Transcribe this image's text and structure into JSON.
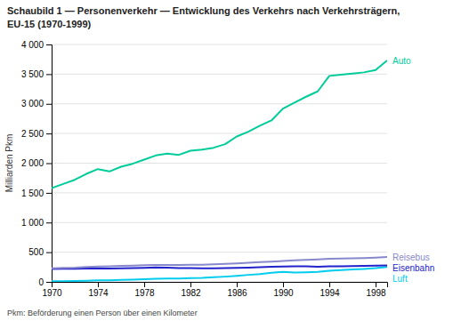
{
  "chart_data": {
    "type": "line",
    "title": "Schaubild 1 — Personenverkehr — Entwicklung des Verkehrs nach Verkehrsträgern,",
    "subtitle": "EU-15 (1970-1999)",
    "y_label": "Milliarden Pkm",
    "footnote": "Pkm: Beförderung einen Person über einen Kilometer",
    "x": [
      1970,
      1971,
      1972,
      1973,
      1974,
      1975,
      1976,
      1977,
      1978,
      1979,
      1980,
      1981,
      1982,
      1983,
      1984,
      1985,
      1986,
      1987,
      1988,
      1989,
      1990,
      1991,
      1992,
      1993,
      1994,
      1995,
      1996,
      1997,
      1998,
      1999
    ],
    "series": [
      {
        "name": "Auto",
        "color": "#00CC99",
        "values": [
          1580,
          1650,
          1720,
          1820,
          1900,
          1860,
          1940,
          1990,
          2060,
          2130,
          2160,
          2140,
          2210,
          2230,
          2260,
          2320,
          2450,
          2530,
          2630,
          2720,
          2920,
          3020,
          3120,
          3210,
          3470,
          3490,
          3510,
          3530,
          3570,
          3730
        ]
      },
      {
        "name": "Reisebus",
        "color": "#8888CC",
        "values": [
          230,
          235,
          240,
          252,
          258,
          262,
          268,
          272,
          280,
          285,
          285,
          285,
          287,
          290,
          296,
          302,
          312,
          322,
          332,
          342,
          352,
          362,
          372,
          378,
          388,
          392,
          397,
          402,
          408,
          418
        ]
      },
      {
        "name": "Eisenbahn",
        "color": "#2222CC",
        "values": [
          218,
          220,
          222,
          226,
          230,
          226,
          230,
          232,
          236,
          242,
          239,
          233,
          231,
          229,
          229,
          231,
          236,
          241,
          249,
          253,
          259,
          263,
          261,
          256,
          261,
          263,
          266,
          269,
          273,
          278
        ]
      },
      {
        "name": "Luft",
        "color": "#00CCEE",
        "values": [
          10,
          12,
          15,
          20,
          25,
          28,
          32,
          38,
          45,
          52,
          56,
          55,
          62,
          67,
          78,
          88,
          102,
          118,
          132,
          152,
          168,
          158,
          162,
          168,
          188,
          198,
          208,
          218,
          232,
          252
        ]
      }
    ],
    "xlim": [
      1970,
      1999
    ],
    "xticks": [
      1970,
      1974,
      1978,
      1982,
      1986,
      1990,
      1994,
      1998
    ],
    "ylim": [
      0,
      4000
    ],
    "yticks": [
      0,
      500,
      {
        "value": 1000,
        "label": "1 000"
      },
      {
        "value": 1500,
        "label": "1 500"
      },
      {
        "value": 2000,
        "label": "2 000"
      },
      {
        "value": 2500,
        "label": "2 500"
      },
      {
        "value": 3000,
        "label": "3 000"
      },
      {
        "value": 3500,
        "label": "3 500"
      },
      {
        "value": 4000,
        "label": "4 000"
      }
    ],
    "grid": true
  }
}
